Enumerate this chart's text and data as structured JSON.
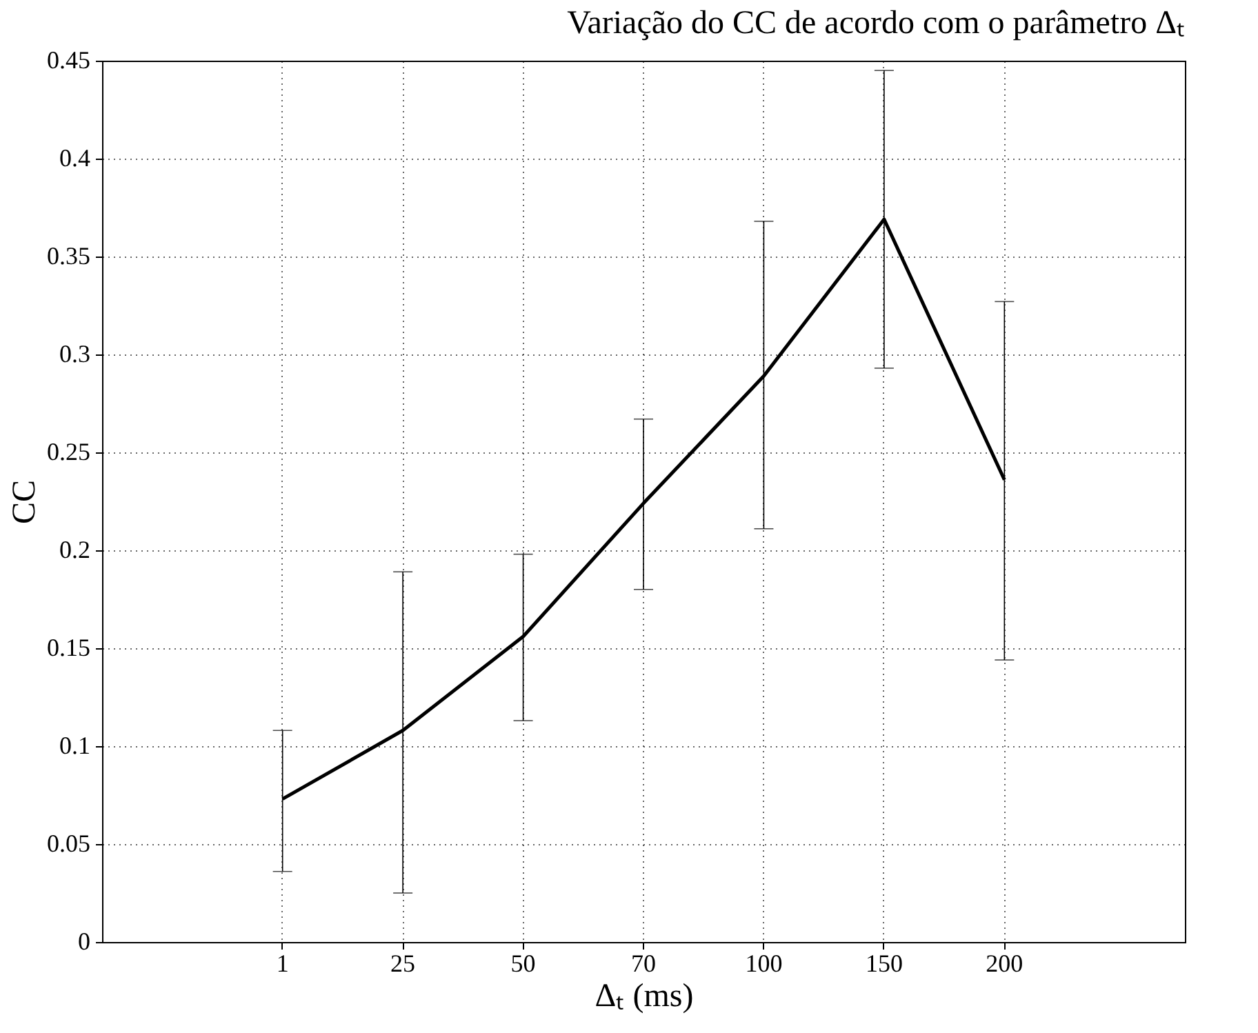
{
  "chart_data": {
    "type": "line",
    "title": "Variação do CC de acordo com o parâmetro Δₜ",
    "xlabel": "Δₜ (ms)",
    "ylabel": "CC",
    "categories": [
      "1",
      "25",
      "50",
      "70",
      "100",
      "150",
      "200"
    ],
    "series": [
      {
        "color": "#000000",
        "values": [
          0.073,
          0.108,
          0.156,
          0.224,
          0.289,
          0.369,
          0.236
        ],
        "errors": [
          [
            0.036,
            0.108
          ],
          [
            0.025,
            0.189
          ],
          [
            0.113,
            0.198
          ],
          [
            0.18,
            0.267
          ],
          [
            0.211,
            0.368
          ],
          [
            0.293,
            0.445
          ],
          [
            0.144,
            0.327
          ]
        ]
      }
    ],
    "ylim": [
      0,
      0.45
    ],
    "yticks": [
      0,
      0.05,
      0.1,
      0.15,
      0.2,
      0.25,
      0.3,
      0.35,
      0.4,
      0.45
    ],
    "grid": true,
    "marker": "none",
    "line_style": "solid"
  }
}
